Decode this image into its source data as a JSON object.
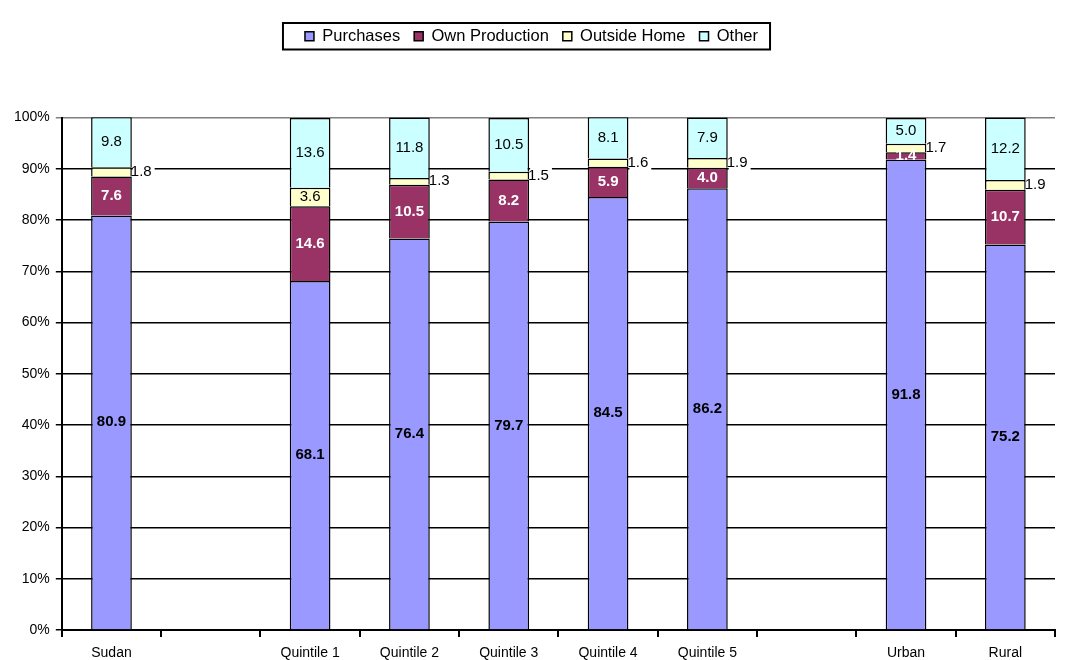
{
  "chart_data": {
    "type": "bar",
    "stacked": true,
    "categories": [
      "Sudan",
      null,
      "Quintile 1",
      "Quintile 2",
      "Quintile 3",
      "Quintile 4",
      "Quintile 5",
      null,
      "Urban",
      "Rural"
    ],
    "series": [
      {
        "name": "Purchases",
        "color": "#9999ff",
        "values": [
          80.9,
          null,
          68.1,
          76.4,
          79.7,
          84.5,
          86.2,
          null,
          91.8,
          75.2
        ],
        "value_labels": [
          "80.9",
          null,
          "68.1",
          "76.4",
          "79.7",
          "84.5",
          "86.2",
          null,
          "91.8",
          "75.2"
        ]
      },
      {
        "name": "Own Production",
        "color": "#993366",
        "values": [
          7.6,
          null,
          14.6,
          10.5,
          8.2,
          5.9,
          4.0,
          null,
          1.4,
          10.7
        ],
        "value_labels": [
          "7.6",
          null,
          "14.6",
          "10.5",
          "8.2",
          "5.9",
          "4.0",
          null,
          "1.4",
          "10.7"
        ]
      },
      {
        "name": "Outside Home",
        "color": "#ffffcc",
        "values": [
          1.8,
          null,
          3.6,
          1.3,
          1.5,
          1.6,
          1.9,
          null,
          1.7,
          1.9
        ],
        "value_labels": [
          "1.8",
          null,
          "3.6",
          "1.3",
          "1.5",
          "1.6",
          "1.9",
          null,
          "1.7",
          "1.9"
        ]
      },
      {
        "name": "Other",
        "color": "#ccffff",
        "values": [
          9.8,
          null,
          13.6,
          11.8,
          10.5,
          8.1,
          7.9,
          null,
          5.0,
          12.2
        ],
        "value_labels": [
          "9.8",
          null,
          "13.6",
          "11.8",
          "10.5",
          "8.1",
          "7.9",
          null,
          "5.0",
          "12.2"
        ]
      }
    ],
    "ylim": [
      0,
      100
    ],
    "yticks": [
      {
        "value": 0,
        "label": "0%"
      },
      {
        "value": 10,
        "label": "10%"
      },
      {
        "value": 20,
        "label": "20%"
      },
      {
        "value": 30,
        "label": "30%"
      },
      {
        "value": 40,
        "label": "40%"
      },
      {
        "value": 50,
        "label": "50%"
      },
      {
        "value": 60,
        "label": "60%"
      },
      {
        "value": 70,
        "label": "70%"
      },
      {
        "value": 80,
        "label": "80%"
      },
      {
        "value": 90,
        "label": "90%"
      },
      {
        "value": 100,
        "label": "100%"
      }
    ],
    "grid": "y",
    "legend": "top"
  }
}
